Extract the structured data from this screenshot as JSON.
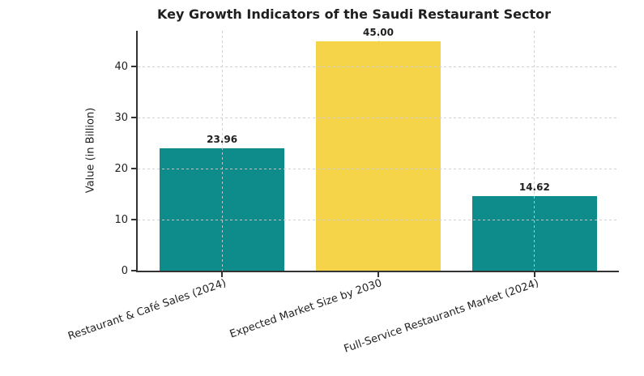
{
  "chart_data": {
    "type": "bar",
    "title": "Key Growth Indicators of the Saudi Restaurant Sector",
    "ylabel": "Value (in Billion)",
    "xlabel": "",
    "categories": [
      "Restaurant & Café Sales (2024)",
      "Expected Market Size by 2030",
      "Full-Service Restaurants Market (2024)"
    ],
    "values": [
      23.96,
      45.0,
      14.62
    ],
    "value_labels": [
      "23.96",
      "45.00",
      "14.62"
    ],
    "bar_colors": [
      "#0E8C8C",
      "#F5D44A",
      "#0E8C8C"
    ],
    "yticks": [
      "0",
      "10",
      "20",
      "30",
      "40"
    ],
    "ytick_values": [
      0,
      10,
      20,
      30,
      40
    ],
    "ylim": [
      0,
      47
    ],
    "x_tick_rotation_deg": 19,
    "grid": {
      "style": "dashed",
      "color": "#CCCCCC",
      "horizontal": true,
      "vertical": true,
      "drawn_over_bars": true
    },
    "legend": null,
    "colors": {
      "axis": "#333333",
      "text": "#1F1F1F",
      "background": "#FFFFFF"
    }
  }
}
